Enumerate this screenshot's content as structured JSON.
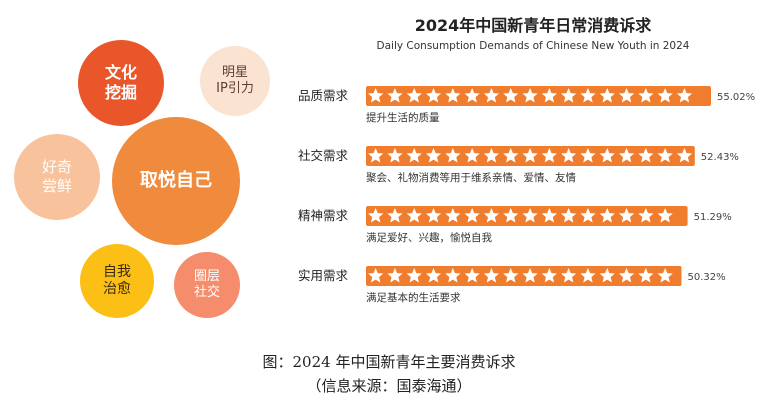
{
  "bubbles": [
    {
      "text": "文化\n挖掘",
      "color": "#e8562a",
      "text_color": "#ffffff"
    },
    {
      "text": "明星\nIP引力",
      "color": "#fbe3d2",
      "text_color": "#5a4030"
    },
    {
      "text": "好奇\n尝鲜",
      "color": "#f8c29c",
      "text_color": "#ffffff"
    },
    {
      "text": "取悦自己",
      "color": "#f08a3c",
      "text_color": "#ffffff"
    },
    {
      "text": "自我\n治愈",
      "color": "#fbbf16",
      "text_color": "#3a2a10"
    },
    {
      "text": "圈层\n社交",
      "color": "#f58d6d",
      "text_color": "#ffffff"
    }
  ],
  "chart_data": {
    "type": "bar",
    "title": "2024年中国新青年日常消费诉求",
    "subtitle": "Daily Consumption Demands of Chinese New Youth in 2024",
    "unit": "%",
    "bar_color": "#f07d2e",
    "categories": [
      "品质需求",
      "社交需求",
      "精神需求",
      "实用需求"
    ],
    "values": [
      55.02,
      52.43,
      51.29,
      50.32
    ],
    "value_labels": [
      "55.02%",
      "52.43%",
      "51.29%",
      "50.32%"
    ],
    "descriptions": [
      "提升生活的质量",
      "聚会、礼物消费等用于维系亲情、爱情、友情",
      "满足爱好、兴趣，愉悦自我",
      "满足基本的生活要求"
    ]
  },
  "caption": {
    "line1": "图：2024 年中国新青年主要消费诉求",
    "line2": "（信息来源：国泰海通）"
  }
}
